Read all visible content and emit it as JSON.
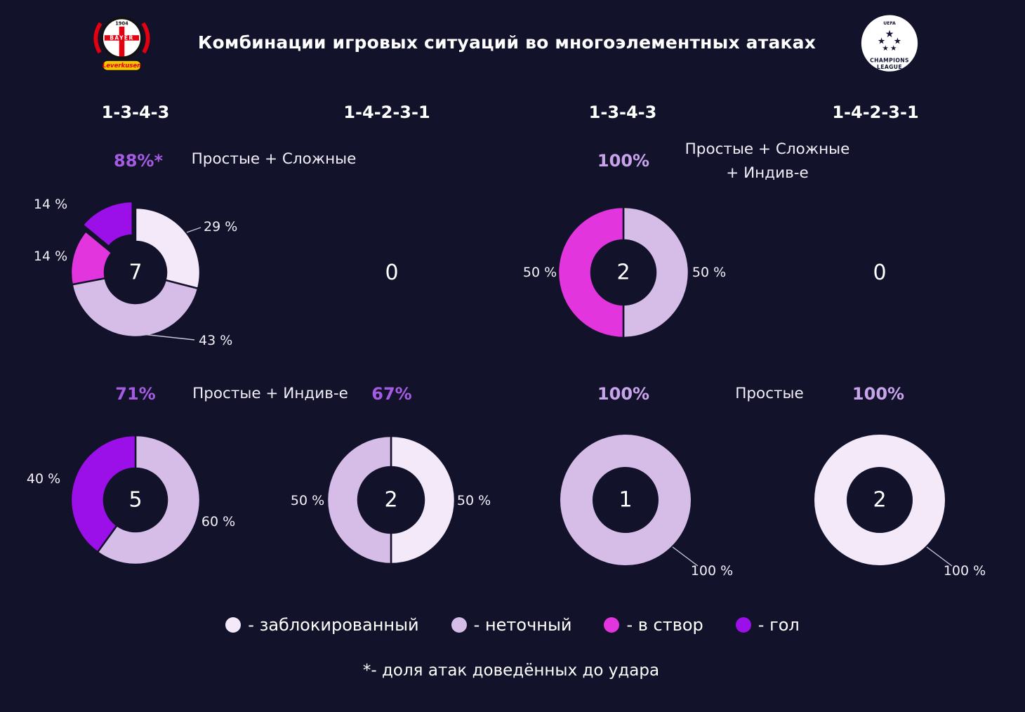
{
  "title": "Комбинации игровых ситуаций во многоэлементных атаках",
  "logos": {
    "left": {
      "name": "Bayer 04 Leverkusen",
      "year": "1904",
      "wordmark": "BAYER",
      "city": "Leverkusen"
    },
    "right": {
      "name": "UEFA Champions League",
      "line_top": "UEFA",
      "line_mid": "CHAMPIONS",
      "line_bottom": "LEAGUE"
    }
  },
  "columns": [
    "1-3-4-3",
    "1-4-2-3-1",
    "1-3-4-3",
    "1-4-2-3-1"
  ],
  "sections": {
    "row1_left": "Простые + Сложные",
    "row1_right_line1": "Простые + Сложные",
    "row1_right_line2": "+ Индив-е",
    "row2_left": "Простые + Индив-е",
    "row2_right": "Простые"
  },
  "colors": {
    "background": "#12122a",
    "blocked": "#f3e9f8",
    "inaccurate": "#d6bde8",
    "on_target": "#e335dd",
    "goal": "#9b10e8",
    "headline_violet": "#a55ce3",
    "headline_light": "#c9a4ea",
    "text": "#ffffff"
  },
  "chart_data": [
    {
      "type": "donut",
      "formation": "1-3-4-3",
      "headline": "88%*",
      "headline_color_key": "headline_violet",
      "group": "Простые + Сложные",
      "center_value": "7",
      "slices": [
        {
          "name": "заблокированный",
          "value": 29,
          "label": "29 %",
          "color_key": "blocked"
        },
        {
          "name": "неточный",
          "value": 43,
          "label": "43 %",
          "color_key": "inaccurate"
        },
        {
          "name": "в створ",
          "value": 14,
          "label": "14 %",
          "color_key": "on_target"
        },
        {
          "name": "гол",
          "value": 14,
          "label": "14 %",
          "color_key": "goal",
          "exploded": true
        }
      ]
    },
    {
      "type": "empty",
      "formation": "1-4-2-3-1",
      "value": "0"
    },
    {
      "type": "donut",
      "formation": "1-3-4-3",
      "headline": "100%",
      "headline_color_key": "headline_light",
      "group": "Простые + Сложные + Индив-е",
      "center_value": "2",
      "slices": [
        {
          "name": "неточный",
          "value": 50,
          "label": "50 %",
          "color_key": "inaccurate"
        },
        {
          "name": "в створ",
          "value": 50,
          "label": "50 %",
          "color_key": "on_target"
        }
      ]
    },
    {
      "type": "empty",
      "formation": "1-4-2-3-1",
      "value": "0"
    },
    {
      "type": "donut",
      "formation": "1-3-4-3",
      "headline": "71%",
      "headline_color_key": "headline_violet",
      "group": "Простые + Индив-е",
      "center_value": "5",
      "slices": [
        {
          "name": "неточный",
          "value": 60,
          "label": "60 %",
          "color_key": "inaccurate"
        },
        {
          "name": "гол",
          "value": 40,
          "label": "40 %",
          "color_key": "goal"
        }
      ]
    },
    {
      "type": "donut",
      "formation": "1-4-2-3-1",
      "headline": "67%",
      "headline_color_key": "headline_violet",
      "group": "Простые + Индив-е",
      "center_value": "2",
      "slices": [
        {
          "name": "заблокированный",
          "value": 50,
          "label": "50 %",
          "color_key": "blocked"
        },
        {
          "name": "неточный",
          "value": 50,
          "label": "50 %",
          "color_key": "inaccurate"
        }
      ]
    },
    {
      "type": "donut",
      "formation": "1-3-4-3",
      "headline": "100%",
      "headline_color_key": "headline_light",
      "group": "Простые",
      "center_value": "1",
      "slices": [
        {
          "name": "неточный",
          "value": 100,
          "label": "100 %",
          "color_key": "inaccurate"
        }
      ]
    },
    {
      "type": "donut",
      "formation": "1-4-2-3-1",
      "headline": "100%",
      "headline_color_key": "headline_light",
      "group": "Простые",
      "center_value": "2",
      "slices": [
        {
          "name": "заблокированный",
          "value": 100,
          "label": "100 %",
          "color_key": "blocked"
        }
      ]
    }
  ],
  "legend": [
    {
      "label": "- заблокированный",
      "color_key": "blocked"
    },
    {
      "label": "- неточный",
      "color_key": "inaccurate"
    },
    {
      "label": "- в створ",
      "color_key": "on_target"
    },
    {
      "label": "- гол",
      "color_key": "goal"
    }
  ],
  "footnote": "*- доля атак доведённых до удара"
}
